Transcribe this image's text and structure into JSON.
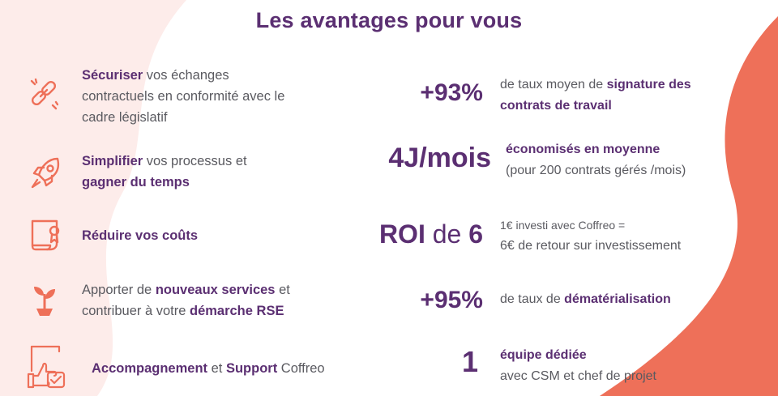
{
  "title": "Les avantages pour vous",
  "colors": {
    "purple": "#5b2f72",
    "coral": "#ee7059",
    "pink_bg": "#fdecea",
    "text": "#5a5a60"
  },
  "benefits": [
    {
      "icon": "chain-link-icon",
      "b1": "Sécuriser",
      "t1": " vos échanges",
      "line2": "contractuels en conformité avec le",
      "line3": "cadre législatif"
    },
    {
      "icon": "rocket-icon",
      "b1": "Simplifier",
      "t1": " vos processus et",
      "b2": "gagner du temps"
    },
    {
      "icon": "certificate-scroll-icon",
      "b1": "Réduire vos coûts"
    },
    {
      "icon": "plant-sprout-icon",
      "t1": "Apporter de ",
      "b1": "nouveaux services",
      "t2": " et",
      "t3": "contribuer à votre ",
      "b2": "démarche RSE"
    },
    {
      "icon": "thumbs-up-document-icon",
      "b1": "Accompagnement",
      "t1": " et ",
      "b2": "Support",
      "t2": " Coffreo"
    }
  ],
  "stats": [
    {
      "value": "+93%",
      "d_t1": "de taux moyen de ",
      "d_b1": "signature des",
      "d_b2": "contrats de travail"
    },
    {
      "value": "4J/mois",
      "d_b1": "économisés en moyenne",
      "d_t2": "(pour 200 contrats gérés /mois)"
    },
    {
      "v_b1": "ROI",
      "v_t": " de ",
      "v_b2": "6",
      "d_t1": "1€ investi avec Coffreo =",
      "d_t2": "6€ de retour sur investissement"
    },
    {
      "value": "+95%",
      "d_t1": "de taux de ",
      "d_b1": "dématérialisation"
    },
    {
      "value": "1",
      "d_b1": "équipe dédiée",
      "d_t2": "avec CSM  et chef de projet"
    }
  ]
}
